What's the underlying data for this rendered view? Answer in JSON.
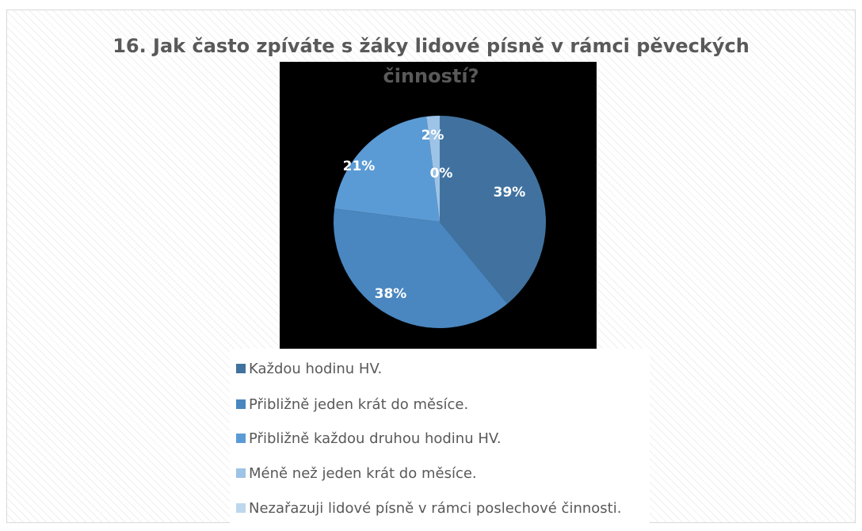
{
  "chart_data": {
    "type": "pie",
    "title_line1": "16. Jak často zpíváte s žáky lidové písně v rámci pěveckých",
    "title_line2": "činností?",
    "slices": [
      {
        "label": "Každou hodinu HV.",
        "value": 39,
        "display": "39%",
        "color": "#41729f"
      },
      {
        "label": "Přibližně jeden krát do měsíce.",
        "value": 38,
        "display": "38%",
        "color": "#4a86bf"
      },
      {
        "label": "Přibližně každou druhou hodinu HV.",
        "value": 21,
        "display": "21%",
        "color": "#5b9bd5"
      },
      {
        "label": "Méně než jeden krát do měsíce.",
        "value": 2,
        "display": "2%",
        "color": "#9dc3e6"
      },
      {
        "label": "Nezařazuji lidové písně v rámci poslechové činnosti.",
        "value": 0,
        "display": "0%",
        "color": "#bdd7ee"
      }
    ],
    "legend_position": "bottom"
  }
}
